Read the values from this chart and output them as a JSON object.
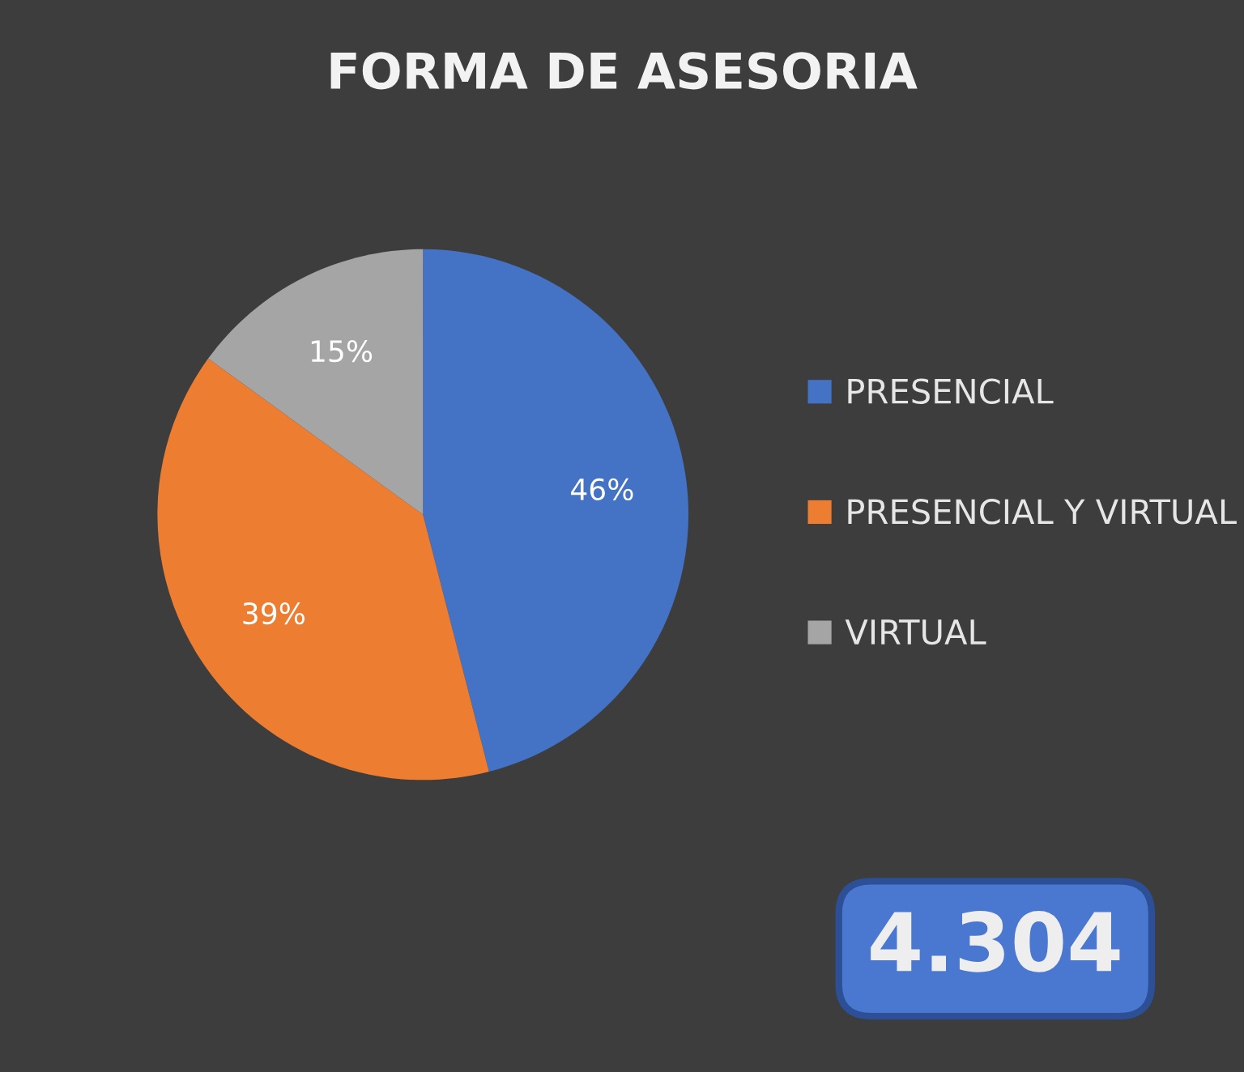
{
  "chart_data": {
    "type": "pie",
    "title": "FORMA DE ASESORIA",
    "categories": [
      "PRESENCIAL",
      "PRESENCIAL Y VIRTUAL",
      "VIRTUAL"
    ],
    "values": [
      46,
      39,
      15
    ],
    "colors": [
      "#4472c4",
      "#ed7d31",
      "#a5a5a5"
    ],
    "value_labels": [
      "46%",
      "39%",
      "15%"
    ],
    "legend": "right",
    "annotations": [
      "4.304"
    ]
  }
}
